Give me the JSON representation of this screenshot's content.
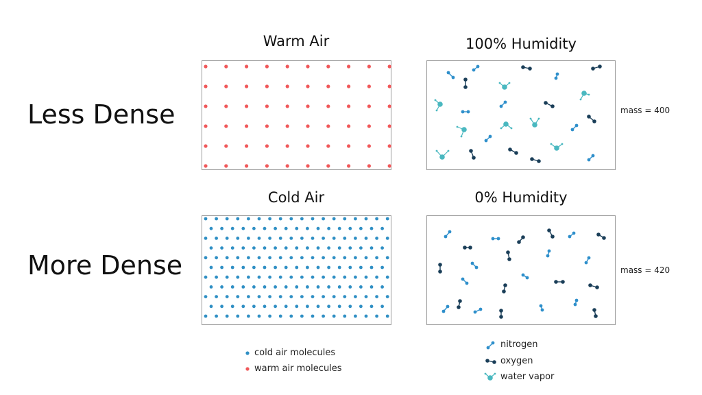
{
  "rows": {
    "top_label": "Less Dense",
    "bottom_label": "More Dense"
  },
  "titles": {
    "warm": "Warm Air",
    "humid": "100% Humidity",
    "cold": "Cold Air",
    "dry": "0% Humidity"
  },
  "mass": {
    "humid": "mass = 400",
    "dry": "mass = 420"
  },
  "legend_left": {
    "cold": "cold air molecules",
    "warm": "warm air molecules"
  },
  "legend_right": {
    "nitrogen": "nitrogen",
    "oxygen": "oxygen",
    "water": "water vapor"
  },
  "colors": {
    "warm": "#f0585a",
    "cold": "#2f8fc4",
    "nitrogen": "#2e8fcb",
    "oxygen": "#1a3e58",
    "water": "#4ab8c0",
    "border": "#9a9a9a"
  }
}
